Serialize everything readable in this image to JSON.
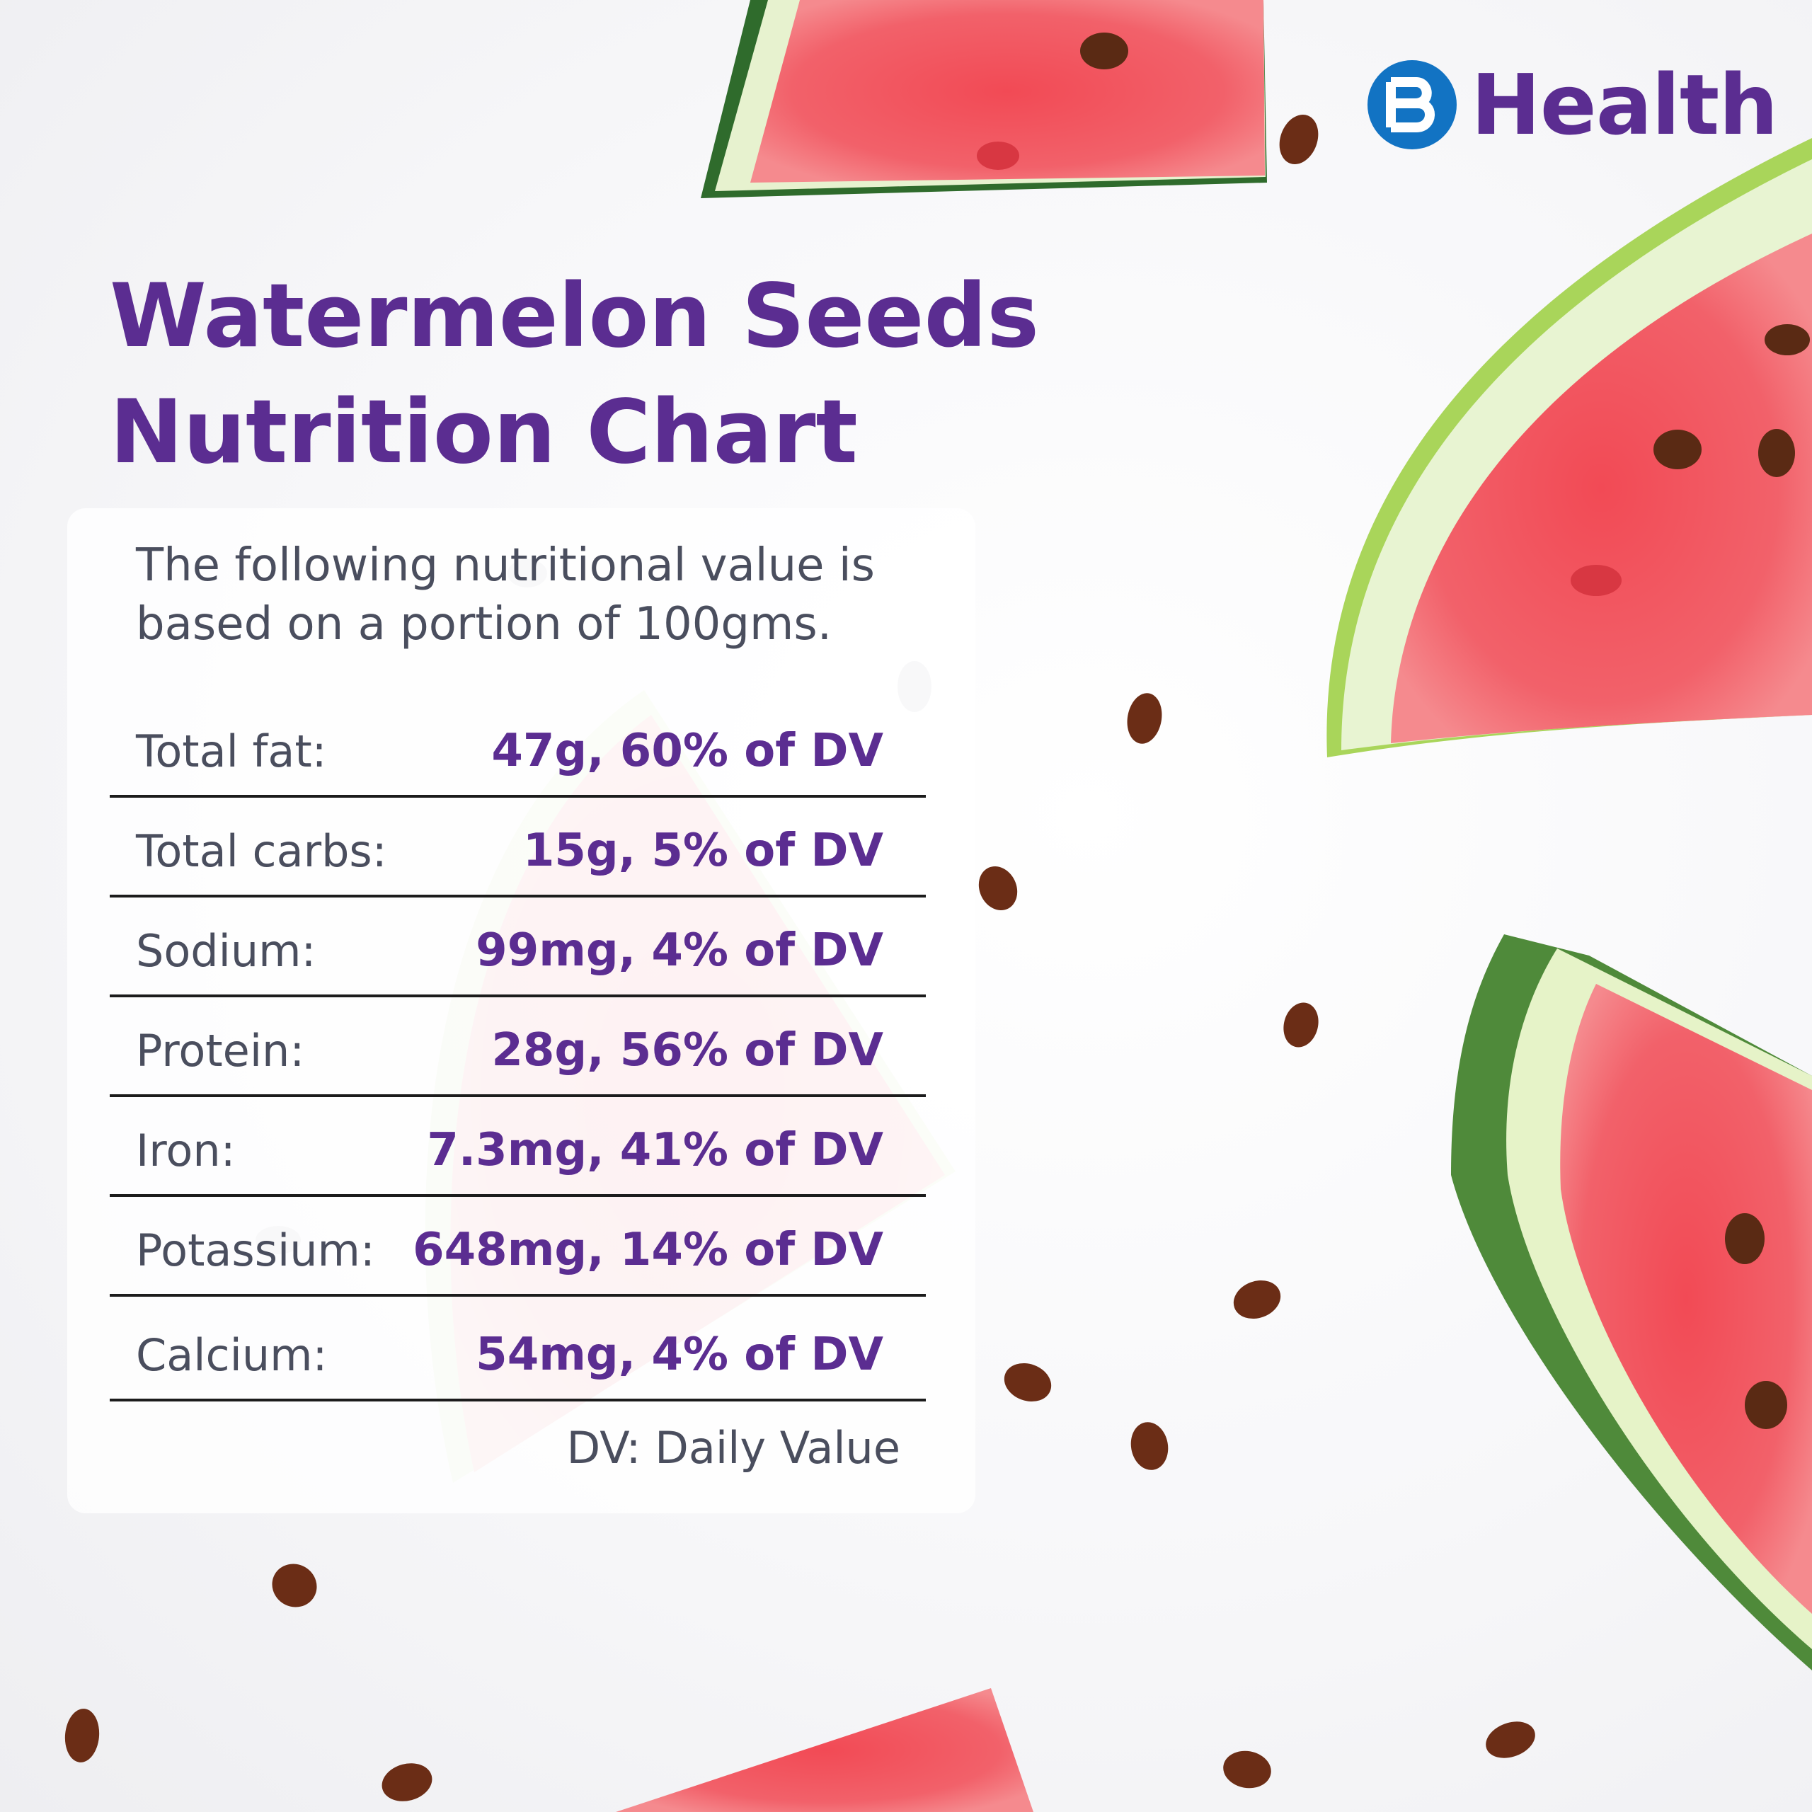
{
  "brand": {
    "name": "Health",
    "badge_color": "#1273c3",
    "text_color": "#5b2d91"
  },
  "title": {
    "line1": "Watermelon Seeds",
    "line2": "Nutrition Chart"
  },
  "intro": "The following nutritional value is based on a portion of 100gms.",
  "nutrients": [
    {
      "label": "Total fat:",
      "value": "47g, 60% of DV"
    },
    {
      "label": "Total carbs:",
      "value": "15g, 5% of DV"
    },
    {
      "label": "Sodium:",
      "value": "99mg, 4% of DV"
    },
    {
      "label": "Protein:",
      "value": "28g, 56% of DV"
    },
    {
      "label": "Iron:",
      "value": "7.3mg, 41% of DV"
    },
    {
      "label": "Potassium:",
      "value": "648mg, 14% of DV"
    },
    {
      "label": "Calcium:",
      "value": "54mg, 4% of DV"
    }
  ],
  "footnote": "DV: Daily Value",
  "colors": {
    "accent": "#5b2d91",
    "body_text": "#4a4e5e",
    "watermelon_flesh": "#f0525a",
    "watermelon_rind": "#4f8a3a"
  }
}
